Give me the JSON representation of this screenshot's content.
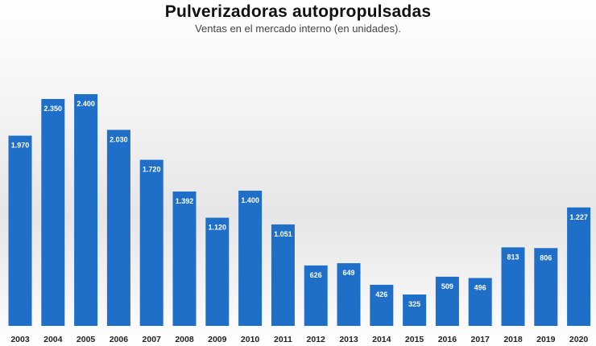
{
  "chart_data": {
    "type": "bar",
    "title": "Pulverizadoras autopropulsadas",
    "subtitle": "Ventas en el mercado interno (en unidades).",
    "xlabel": "",
    "ylabel": "",
    "categories": [
      "2003",
      "2004",
      "2005",
      "2006",
      "2007",
      "2008",
      "2009",
      "2010",
      "2011",
      "2012",
      "2013",
      "2014",
      "2015",
      "2016",
      "2017",
      "2018",
      "2019",
      "2020"
    ],
    "values": [
      1970,
      2350,
      2400,
      2030,
      1720,
      1392,
      1120,
      1400,
      1051,
      626,
      649,
      426,
      325,
      509,
      496,
      813,
      806,
      1227
    ],
    "value_labels": [
      "1.970",
      "2.350",
      "2.400",
      "2.030",
      "1.720",
      "1.392",
      "1.120",
      "1.400",
      "1.051",
      "626",
      "649",
      "426",
      "325",
      "509",
      "496",
      "813",
      "806",
      "1.227"
    ],
    "ylim": [
      0,
      2400
    ],
    "grid": false,
    "legend": "none",
    "colors": {
      "bar": "#1f6fc9"
    }
  }
}
